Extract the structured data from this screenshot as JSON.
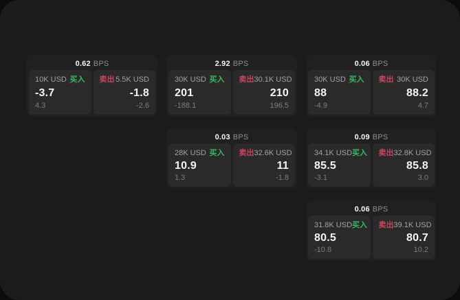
{
  "labels": {
    "bps_unit": "BPS",
    "buy": "买入",
    "sell": "卖出"
  },
  "colors": {
    "buy_green": "#36b95f",
    "sell_red": "#c94560",
    "panel_bg": "#1b1b1b",
    "card_bg": "#202020",
    "tile_bg": "#2a2a2a"
  },
  "cards": [
    {
      "bps": "0.62",
      "buy": {
        "size": "10K USD",
        "price": "-3.7",
        "secondary": "4.3"
      },
      "sell": {
        "size": "5.5K USD",
        "price": "-1.8",
        "secondary": "-2.6"
      }
    },
    {
      "bps": "2.92",
      "buy": {
        "size": "30K USD",
        "price": "201",
        "secondary": "-188.1"
      },
      "sell": {
        "size": "30.1K USD",
        "price": "210",
        "secondary": "196.5"
      }
    },
    {
      "bps": "0.06",
      "buy": {
        "size": "30K USD",
        "price": "88",
        "secondary": "-4.9"
      },
      "sell": {
        "size": "30K USD",
        "price": "88.2",
        "secondary": "4.7"
      }
    },
    {
      "bps": "0.03",
      "buy": {
        "size": "28K USD",
        "price": "10.9",
        "secondary": "1.3"
      },
      "sell": {
        "size": "32.6K USD",
        "price": "11",
        "secondary": "-1.8"
      }
    },
    {
      "bps": "0.09",
      "buy": {
        "size": "34.1K USD",
        "price": "85.5",
        "secondary": "-3.1"
      },
      "sell": {
        "size": "32.8K USD",
        "price": "85.8",
        "secondary": "3.0"
      }
    },
    {
      "bps": "0.06",
      "buy": {
        "size": "31.8K USD",
        "price": "80.5",
        "secondary": "-10.8"
      },
      "sell": {
        "size": "39.1K USD",
        "price": "80.7",
        "secondary": "10.2"
      }
    }
  ]
}
